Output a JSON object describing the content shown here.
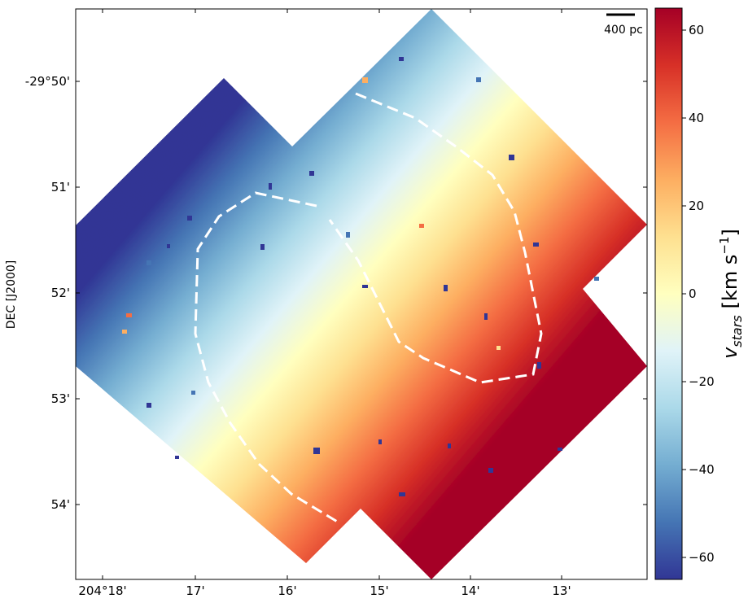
{
  "chart_data": {
    "type": "heatmap",
    "title": "",
    "xlabel": "",
    "ylabel": "DEC [J2000]",
    "x_ticks": [
      "204°18'",
      "17'",
      "16'",
      "15'",
      "14'",
      "13'"
    ],
    "y_ticks": [
      "-29°50'",
      "51'",
      "52'",
      "53'",
      "54'"
    ],
    "colorbar": {
      "label_main": "v",
      "label_sub": "stars",
      "label_units": "[km s",
      "label_exp": "−1",
      "label_close": "]",
      "range": [
        -65,
        65
      ],
      "ticks": [
        60,
        40,
        20,
        0,
        -20,
        -40,
        -60
      ],
      "tick_labels": [
        "60",
        "40",
        "20",
        "0",
        "−20",
        "−40",
        "−60"
      ],
      "colormap": [
        "#313695",
        "#4575b4",
        "#74add1",
        "#abd9e9",
        "#e0f3f8",
        "#ffffbf",
        "#fee090",
        "#fdae61",
        "#f46d43",
        "#d73027",
        "#a50026"
      ]
    },
    "scale_bar": {
      "label": "400 pc"
    },
    "field": {
      "kinematic_axis": "blue (approaching) toward upper-left, red (receding) toward lower-right",
      "v_min": -65,
      "v_max": 65
    },
    "annotations": [
      "dashed white contour (inner)",
      "dashed white contour (outer)"
    ]
  }
}
